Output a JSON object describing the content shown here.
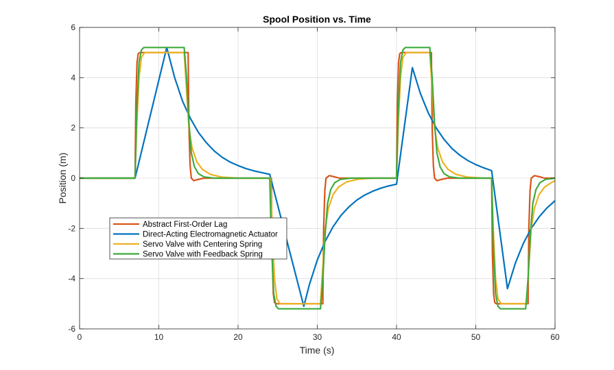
{
  "chart_data": {
    "type": "line",
    "title": "Spool Position vs. Time",
    "xlabel": "Time (s)",
    "ylabel": "Position (m)",
    "xlim": [
      0,
      60
    ],
    "ylim": [
      -6,
      6
    ],
    "xticks": [
      "0",
      "10",
      "20",
      "30",
      "40",
      "50",
      "60"
    ],
    "yticks": [
      "-6",
      "-4",
      "-2",
      "0",
      "2",
      "4",
      "6"
    ],
    "grid": true,
    "legend_placement": "lower-left",
    "series": [
      {
        "name": "Abstract First-Order Lag",
        "color": "#D95319",
        "points": [
          [
            0,
            0
          ],
          [
            7,
            0
          ],
          [
            7.1,
            3
          ],
          [
            7.25,
            4.6
          ],
          [
            7.4,
            4.95
          ],
          [
            7.6,
            5
          ],
          [
            13.7,
            5
          ],
          [
            13.8,
            2
          ],
          [
            13.95,
            0.5
          ],
          [
            14.1,
            0
          ],
          [
            14.4,
            -0.1
          ],
          [
            15,
            -0.05
          ],
          [
            15.7,
            0
          ],
          [
            24.2,
            0
          ],
          [
            24.3,
            -3
          ],
          [
            24.45,
            -4.6
          ],
          [
            24.6,
            -4.95
          ],
          [
            24.8,
            -5
          ],
          [
            30.7,
            -5
          ],
          [
            30.8,
            -2
          ],
          [
            30.95,
            -0.5
          ],
          [
            31.1,
            0
          ],
          [
            31.5,
            0.1
          ],
          [
            32.1,
            0.06
          ],
          [
            32.8,
            0
          ],
          [
            40,
            0
          ],
          [
            40.1,
            3
          ],
          [
            40.25,
            4.6
          ],
          [
            40.4,
            4.95
          ],
          [
            40.6,
            5
          ],
          [
            44.4,
            5
          ],
          [
            44.5,
            2
          ],
          [
            44.65,
            0.5
          ],
          [
            44.8,
            0
          ],
          [
            45.1,
            -0.1
          ],
          [
            45.7,
            -0.05
          ],
          [
            46.4,
            0
          ],
          [
            52,
            0
          ],
          [
            52.1,
            -3
          ],
          [
            52.25,
            -4.6
          ],
          [
            52.4,
            -4.95
          ],
          [
            52.6,
            -5
          ],
          [
            56.6,
            -5
          ],
          [
            56.7,
            -2
          ],
          [
            56.85,
            -0.5
          ],
          [
            57,
            0
          ],
          [
            57.4,
            0.1
          ],
          [
            58,
            0.06
          ],
          [
            58.7,
            0
          ],
          [
            60,
            0
          ]
        ]
      },
      {
        "name": "Direct-Acting Electromagnetic Actuator",
        "color": "#0072BD",
        "points": [
          [
            0,
            0
          ],
          [
            7,
            0
          ],
          [
            11,
            5.2
          ],
          [
            12,
            4.0
          ],
          [
            13,
            3.06
          ],
          [
            14,
            2.37
          ],
          [
            15,
            1.82
          ],
          [
            16,
            1.41
          ],
          [
            17,
            1.08
          ],
          [
            18,
            0.83
          ],
          [
            19,
            0.64
          ],
          [
            20,
            0.5
          ],
          [
            21,
            0.38
          ],
          [
            22,
            0.29
          ],
          [
            23,
            0.22
          ],
          [
            24,
            0.15
          ],
          [
            28.3,
            -5.1
          ],
          [
            29,
            -4.24
          ],
          [
            30,
            -3.26
          ],
          [
            31,
            -2.51
          ],
          [
            32,
            -1.93
          ],
          [
            33,
            -1.48
          ],
          [
            34,
            -1.14
          ],
          [
            35,
            -0.87
          ],
          [
            36,
            -0.67
          ],
          [
            37,
            -0.52
          ],
          [
            38,
            -0.4
          ],
          [
            39,
            -0.31
          ],
          [
            40,
            -0.24
          ],
          [
            42,
            4.4
          ],
          [
            43,
            3.38
          ],
          [
            44,
            2.6
          ],
          [
            45,
            2.0
          ],
          [
            46,
            1.54
          ],
          [
            47,
            1.18
          ],
          [
            48,
            0.91
          ],
          [
            49,
            0.7
          ],
          [
            50,
            0.54
          ],
          [
            51,
            0.41
          ],
          [
            52,
            0.3
          ],
          [
            54,
            -4.4
          ],
          [
            55,
            -3.38
          ],
          [
            56,
            -2.6
          ],
          [
            57,
            -2.0
          ],
          [
            58,
            -1.54
          ],
          [
            59,
            -1.18
          ],
          [
            60,
            -0.9
          ]
        ]
      },
      {
        "name": "Servo Valve with Centering Spring",
        "color": "#EDB120",
        "points": [
          [
            0,
            0
          ],
          [
            7,
            0
          ],
          [
            7.2,
            2
          ],
          [
            7.5,
            4
          ],
          [
            7.8,
            4.8
          ],
          [
            8.2,
            5
          ],
          [
            13.2,
            5
          ],
          [
            13.5,
            3.5
          ],
          [
            13.8,
            2
          ],
          [
            14.2,
            1.2
          ],
          [
            14.8,
            0.65
          ],
          [
            15.5,
            0.35
          ],
          [
            16.5,
            0.15
          ],
          [
            18,
            0.04
          ],
          [
            20,
            0
          ],
          [
            24.1,
            0
          ],
          [
            24.3,
            -2
          ],
          [
            24.6,
            -4
          ],
          [
            24.9,
            -4.8
          ],
          [
            25.3,
            -5
          ],
          [
            30.4,
            -5
          ],
          [
            30.7,
            -3.5
          ],
          [
            31,
            -2
          ],
          [
            31.4,
            -1.2
          ],
          [
            32,
            -0.65
          ],
          [
            32.7,
            -0.35
          ],
          [
            33.7,
            -0.15
          ],
          [
            35.2,
            -0.04
          ],
          [
            37,
            0
          ],
          [
            40,
            0
          ],
          [
            40.2,
            2
          ],
          [
            40.5,
            4
          ],
          [
            40.8,
            4.8
          ],
          [
            41.2,
            5
          ],
          [
            44.2,
            5
          ],
          [
            44.5,
            3.5
          ],
          [
            44.8,
            2
          ],
          [
            45.2,
            1.2
          ],
          [
            45.8,
            0.65
          ],
          [
            46.5,
            0.35
          ],
          [
            47.5,
            0.15
          ],
          [
            49,
            0.04
          ],
          [
            51,
            0
          ],
          [
            52,
            0
          ],
          [
            52.2,
            -2
          ],
          [
            52.5,
            -4
          ],
          [
            52.8,
            -4.8
          ],
          [
            53.2,
            -5
          ],
          [
            56.4,
            -5
          ],
          [
            56.7,
            -3.5
          ],
          [
            57,
            -2
          ],
          [
            57.4,
            -1.2
          ],
          [
            58,
            -0.65
          ],
          [
            58.7,
            -0.35
          ],
          [
            59.7,
            -0.15
          ],
          [
            60,
            -0.1
          ]
        ]
      },
      {
        "name": "Servo Valve with Feedback Spring",
        "color": "#3DAA3D",
        "points": [
          [
            0,
            0
          ],
          [
            7,
            0
          ],
          [
            7.2,
            2.5
          ],
          [
            7.5,
            4.6
          ],
          [
            7.8,
            5.1
          ],
          [
            8.1,
            5.2
          ],
          [
            13.2,
            5.2
          ],
          [
            13.5,
            4
          ],
          [
            13.8,
            2.2
          ],
          [
            14.1,
            1
          ],
          [
            14.5,
            0.45
          ],
          [
            15,
            0.18
          ],
          [
            15.7,
            0.05
          ],
          [
            17,
            0
          ],
          [
            24,
            0
          ],
          [
            24.2,
            -2.5
          ],
          [
            24.5,
            -4.6
          ],
          [
            24.8,
            -5.1
          ],
          [
            25.1,
            -5.2
          ],
          [
            30.4,
            -5.2
          ],
          [
            30.7,
            -4
          ],
          [
            31,
            -2.2
          ],
          [
            31.3,
            -1
          ],
          [
            31.7,
            -0.45
          ],
          [
            32.2,
            -0.18
          ],
          [
            32.9,
            -0.05
          ],
          [
            34.2,
            0
          ],
          [
            40,
            0
          ],
          [
            40.2,
            2.5
          ],
          [
            40.5,
            4.6
          ],
          [
            40.8,
            5.1
          ],
          [
            41.1,
            5.2
          ],
          [
            44.2,
            5.2
          ],
          [
            44.5,
            4
          ],
          [
            44.8,
            2.2
          ],
          [
            45.1,
            1
          ],
          [
            45.5,
            0.45
          ],
          [
            46,
            0.18
          ],
          [
            46.7,
            0.05
          ],
          [
            48,
            0
          ],
          [
            52,
            0
          ],
          [
            52.2,
            -2.5
          ],
          [
            52.5,
            -4.6
          ],
          [
            52.8,
            -5.1
          ],
          [
            53.1,
            -5.2
          ],
          [
            56.3,
            -5.2
          ],
          [
            56.6,
            -4
          ],
          [
            56.9,
            -2.2
          ],
          [
            57.2,
            -1
          ],
          [
            57.6,
            -0.45
          ],
          [
            58.1,
            -0.18
          ],
          [
            58.8,
            -0.05
          ],
          [
            60,
            0
          ]
        ]
      }
    ]
  }
}
